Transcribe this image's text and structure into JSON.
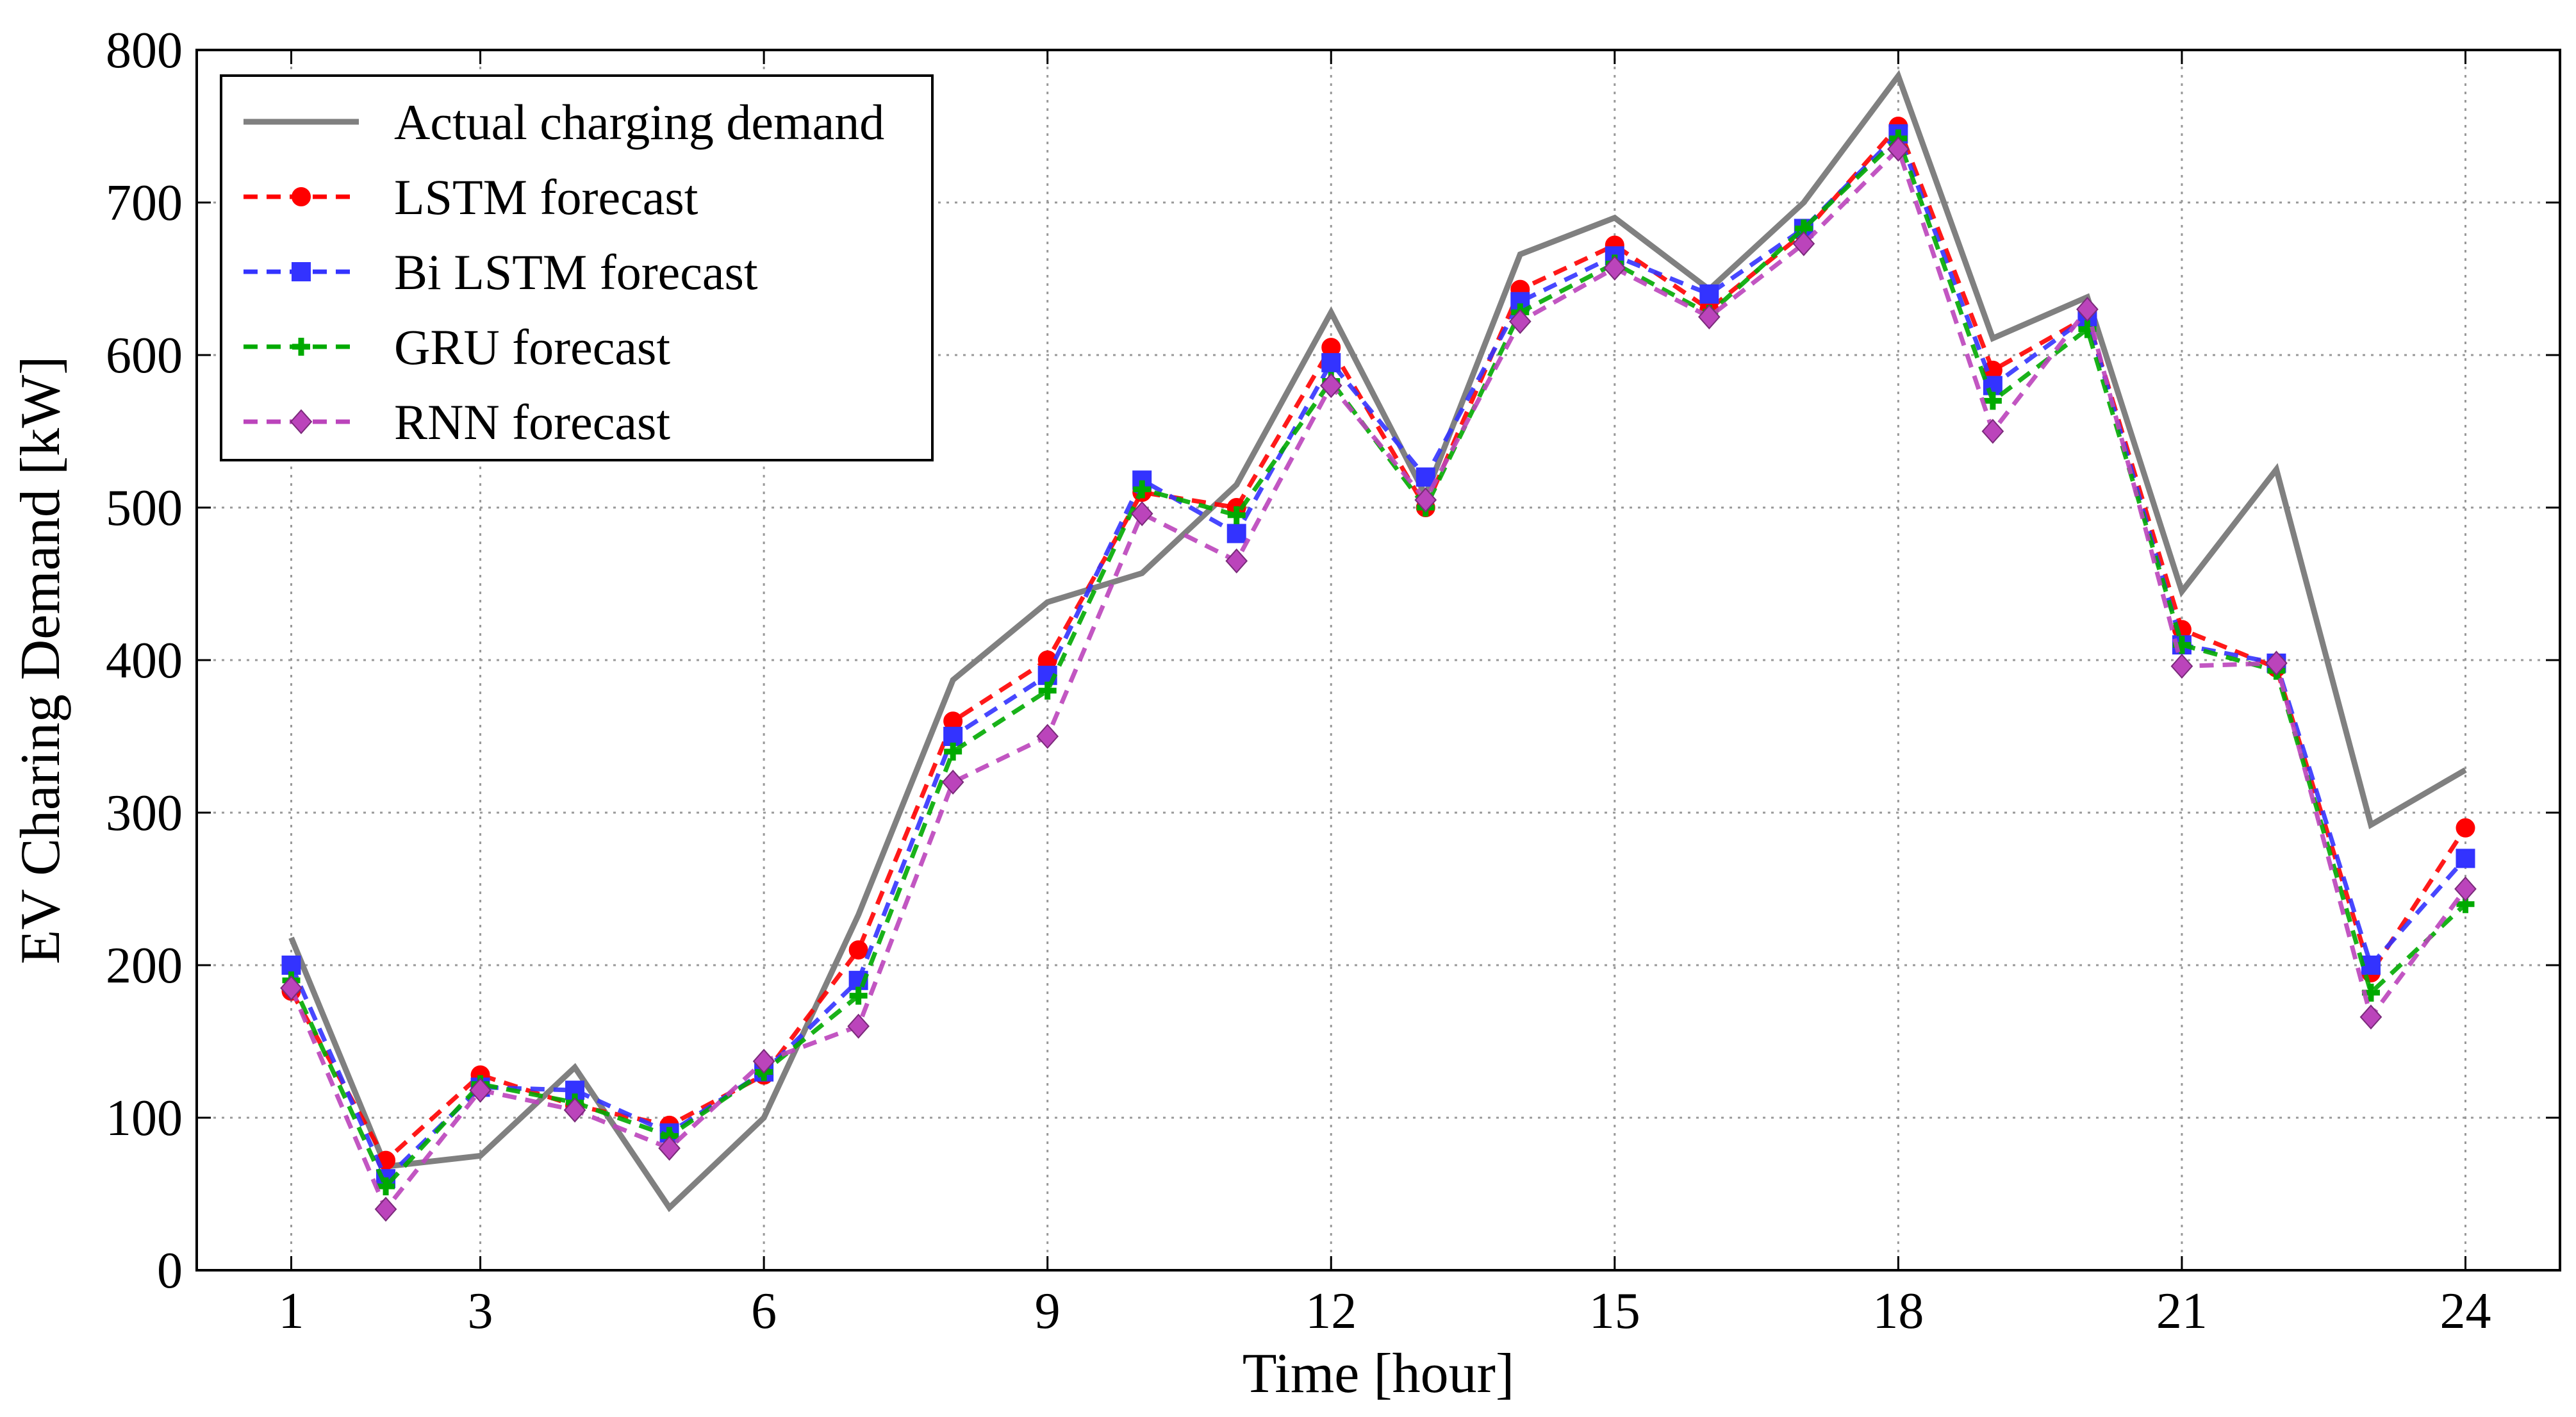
{
  "chart_data": {
    "type": "line",
    "title": "",
    "xlabel": "Time [hour]",
    "ylabel": "EV Charing Demand [kW]",
    "xlim": [
      0,
      25
    ],
    "ylim": [
      0,
      800
    ],
    "xticks": [
      1,
      3,
      6,
      9,
      12,
      15,
      18,
      21,
      24
    ],
    "yticks": [
      0,
      100,
      200,
      300,
      400,
      500,
      600,
      700,
      800
    ],
    "grid": true,
    "legend_position": "top-left",
    "x": [
      1,
      2,
      3,
      4,
      5,
      6,
      7,
      8,
      9,
      10,
      11,
      12,
      13,
      14,
      15,
      16,
      17,
      18,
      19,
      20,
      21,
      22,
      23,
      24
    ],
    "series": [
      {
        "name": "Actual charging demand",
        "color": "#808080",
        "style": "solid",
        "marker": "none",
        "values": [
          218,
          68,
          75,
          133,
          41,
          100,
          233,
          387,
          438,
          457,
          515,
          628,
          508,
          666,
          690,
          643,
          700,
          783,
          611,
          638,
          445,
          525,
          292,
          328
        ]
      },
      {
        "name": "LSTM forecast",
        "color": "#ff0000",
        "style": "dashed",
        "marker": "circle",
        "values": [
          183,
          72,
          128,
          108,
          95,
          128,
          210,
          360,
          400,
          510,
          500,
          605,
          500,
          643,
          672,
          630,
          680,
          750,
          590,
          625,
          420,
          395,
          195,
          290
        ]
      },
      {
        "name": "Bi LSTM forecast",
        "color": "#3333ff",
        "style": "dashed",
        "marker": "square",
        "values": [
          200,
          60,
          120,
          118,
          90,
          130,
          190,
          350,
          390,
          518,
          483,
          595,
          520,
          635,
          665,
          640,
          683,
          745,
          580,
          625,
          410,
          398,
          200,
          270
        ]
      },
      {
        "name": "GRU forecast",
        "color": "#00aa00",
        "style": "dashed",
        "marker": "plus",
        "values": [
          190,
          55,
          122,
          110,
          88,
          130,
          180,
          340,
          380,
          512,
          495,
          583,
          500,
          628,
          660,
          627,
          683,
          742,
          570,
          617,
          410,
          393,
          182,
          240
        ]
      },
      {
        "name": "RNN forecast",
        "color": "#bb44bb",
        "style": "dashed",
        "marker": "diamond",
        "values": [
          185,
          40,
          118,
          105,
          80,
          137,
          160,
          320,
          350,
          496,
          465,
          580,
          505,
          622,
          657,
          625,
          673,
          735,
          550,
          630,
          396,
          398,
          166,
          250
        ]
      }
    ]
  }
}
